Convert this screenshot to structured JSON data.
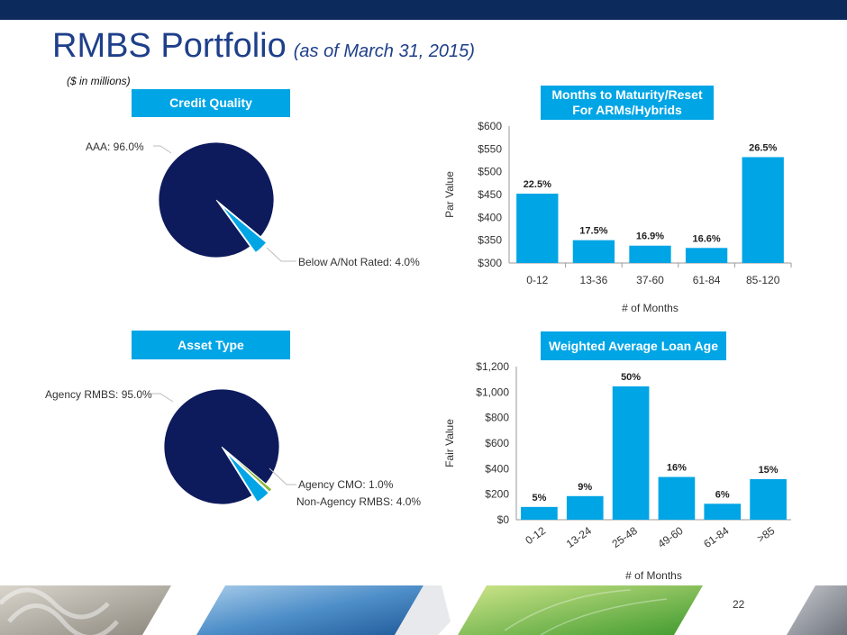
{
  "header": {
    "title": "RMBS Portfolio",
    "subtitle": "(as of March 31, 2015)",
    "units": "($ in millions)"
  },
  "page_number": "22",
  "colors": {
    "navy": "#0d1a5c",
    "accent": "#00a5e6",
    "bar": "#00a5e6",
    "olive": "#8ab83a",
    "title": "#1e3f8a"
  },
  "chart_data": [
    {
      "type": "pie",
      "header": "Credit Quality",
      "slices": [
        {
          "label": "AAA: 96.0%",
          "value": 96.0,
          "color": "#0d1a5c"
        },
        {
          "label": "Below A/Not Rated: 4.0%",
          "value": 4.0,
          "color": "#00a5e6"
        }
      ]
    },
    {
      "type": "bar",
      "header": "Months to Maturity/Reset For ARMs/Hybrids",
      "categories": [
        "0-12",
        "13-36",
        "37-60",
        "61-84",
        "85-120"
      ],
      "values": [
        452,
        350,
        338,
        333,
        532
      ],
      "data_labels": [
        "22.5%",
        "17.5%",
        "16.9%",
        "16.6%",
        "26.5%"
      ],
      "xlabel": "# of Months",
      "ylabel": "Par Value",
      "ylim": [
        300,
        600
      ],
      "yticks": [
        "$300",
        "$350",
        "$400",
        "$450",
        "$500",
        "$550",
        "$600"
      ]
    },
    {
      "type": "pie",
      "header": "Asset Type",
      "slices": [
        {
          "label": "Agency RMBS: 95.0%",
          "value": 95.0,
          "color": "#0d1a5c"
        },
        {
          "label": "Agency CMO: 1.0%",
          "value": 1.0,
          "color": "#8ab83a"
        },
        {
          "label": "Non-Agency RMBS: 4.0%",
          "value": 4.0,
          "color": "#00a5e6"
        }
      ]
    },
    {
      "type": "bar",
      "header": "Weighted Average Loan Age",
      "categories": [
        "0-12",
        "13-24",
        "25-48",
        "49-60",
        "61-84",
        ">85"
      ],
      "values": [
        100,
        185,
        1045,
        335,
        125,
        318
      ],
      "data_labels": [
        "5%",
        "9%",
        "50%",
        "16%",
        "6%",
        "15%"
      ],
      "xlabel": "# of Months",
      "ylabel": "Fair Value",
      "ylim": [
        0,
        1200
      ],
      "yticks": [
        "$0",
        "$200",
        "$400",
        "$600",
        "$800",
        "$1,000",
        "$1,200"
      ]
    }
  ]
}
